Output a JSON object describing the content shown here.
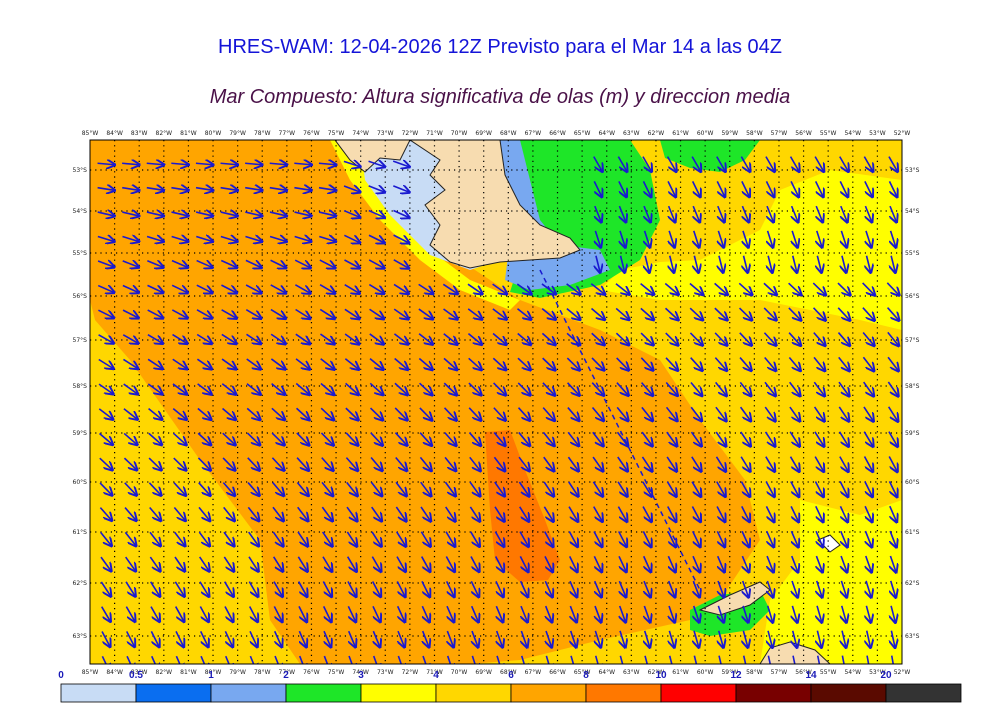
{
  "header": {
    "title": "HRES-WAM: 12-04-2026 12Z Previsto para el Mar 14 a las 04Z",
    "subtitle": "Mar Compuesto: Altura significativa de olas (m) y direccion media"
  },
  "map": {
    "lon_labels": [
      "85°W",
      "84°W",
      "83°W",
      "82°W",
      "81°W",
      "80°W",
      "79°W",
      "78°W",
      "77°W",
      "76°W",
      "75°W",
      "74°W",
      "73°W",
      "72°W",
      "71°W",
      "70°W",
      "69°W",
      "68°W",
      "67°W",
      "66°W",
      "65°W",
      "64°W",
      "63°W",
      "62°W",
      "61°W",
      "60°W",
      "59°W",
      "58°W",
      "57°W",
      "56°W",
      "55°W",
      "54°W",
      "53°W",
      "52°W"
    ],
    "lat_labels": [
      "53°S",
      "54°S",
      "55°S",
      "56°S",
      "57°S",
      "58°S",
      "59°S",
      "60°S",
      "61°S",
      "62°S",
      "63°S"
    ],
    "arrow_color": "#1a1ad0",
    "land_color": "#f7dcb0"
  },
  "colorbar": {
    "labels": [
      "0",
      "0.5",
      "1",
      "2",
      "3",
      "4",
      "6",
      "8",
      "10",
      "12",
      "14",
      "20"
    ],
    "colors": [
      "#c8dcf5",
      "#0a6ef0",
      "#78a8f0",
      "#1ee628",
      "#fffe00",
      "#ffd700",
      "#ffa500",
      "#ff7800",
      "#ff0000",
      "#780000",
      "#5a0a00",
      "#333333"
    ]
  }
}
